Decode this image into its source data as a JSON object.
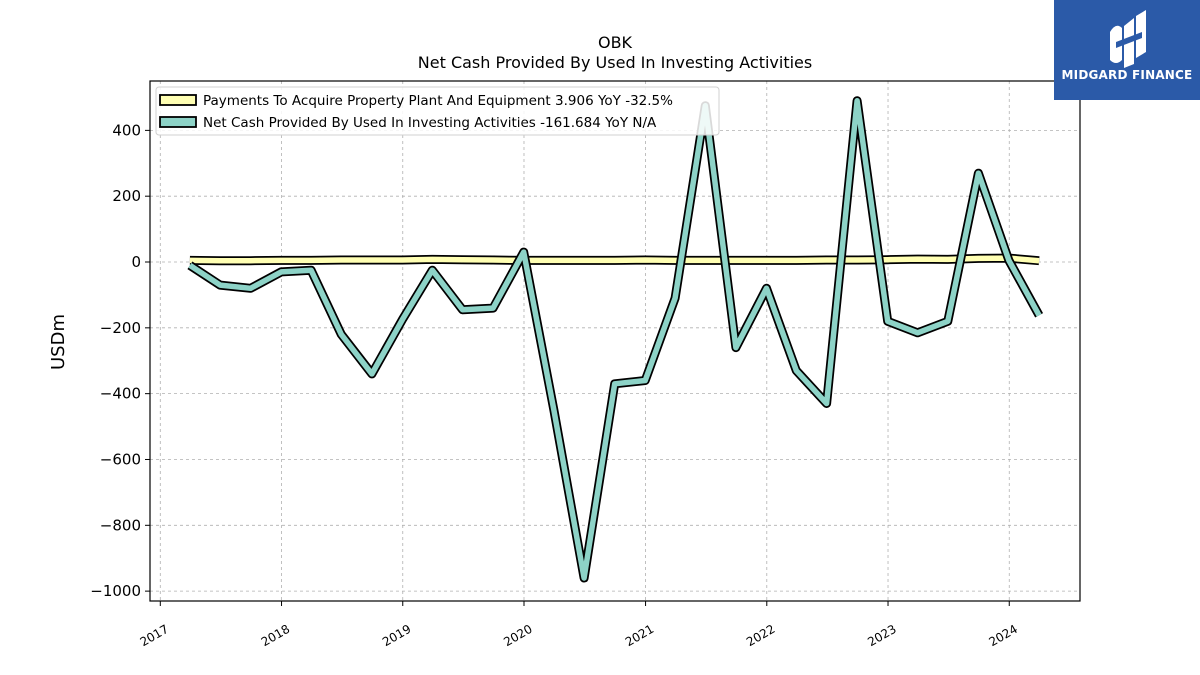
{
  "header": {
    "ticker": "OBK",
    "subtitle": "Net Cash Provided By Used In Investing Activities"
  },
  "logo": {
    "text": "MIDGARD FINANCE",
    "icon": "midgard-logo-icon"
  },
  "chart_data": {
    "type": "line",
    "title": "OBK",
    "subtitle": "Net Cash Provided By Used In Investing Activities",
    "ylabel": "USDm",
    "xlabel": "",
    "ylim": [
      -1030,
      550
    ],
    "xlim": [
      "2016-12-01",
      "2024-08-01"
    ],
    "grid": true,
    "legend_position": "top-left",
    "yticks": [
      400,
      200,
      0,
      -200,
      -400,
      -600,
      -800,
      -1000
    ],
    "ytick_labels": [
      "400",
      "200",
      "0",
      "−200",
      "−400",
      "−600",
      "−800",
      "−1000"
    ],
    "xticks": [
      "2017-01-01",
      "2018-01-01",
      "2019-01-01",
      "2020-01-01",
      "2021-01-01",
      "2022-01-01",
      "2023-01-01",
      "2024-01-01"
    ],
    "xtick_labels": [
      "2017",
      "2018",
      "2019",
      "2020",
      "2021",
      "2022",
      "2023",
      "2024"
    ],
    "series": [
      {
        "name": "Payments To Acquire Property Plant And Equipment",
        "legend_label": "Payments To Acquire Property Plant And Equipment  3.906 YoY -32.5%",
        "color": "#ffffb3",
        "x": [
          "2017-03-31",
          "2017-06-30",
          "2017-09-30",
          "2017-12-31",
          "2018-03-31",
          "2018-06-30",
          "2018-09-30",
          "2018-12-31",
          "2019-03-31",
          "2019-06-30",
          "2019-09-30",
          "2019-12-31",
          "2020-03-31",
          "2020-06-30",
          "2020-09-30",
          "2020-12-31",
          "2021-03-31",
          "2021-06-30",
          "2021-09-30",
          "2021-12-31",
          "2022-03-31",
          "2022-06-30",
          "2022-09-30",
          "2022-12-31",
          "2023-03-31",
          "2023-06-30",
          "2023-09-30",
          "2023-12-31",
          "2024-03-31"
        ],
        "values": [
          5,
          4,
          4,
          5,
          5,
          6,
          6,
          6,
          8,
          7,
          6,
          5,
          5,
          5,
          5,
          6,
          5,
          5,
          5,
          5,
          5,
          6,
          6,
          7,
          9,
          8,
          11,
          12,
          4
        ]
      },
      {
        "name": "Net Cash Provided By Used In Investing Activities",
        "legend_label": "Net Cash Provided By Used In Investing Activities  -161.684 YoY N/A",
        "color": "#8dd3c7",
        "x": [
          "2017-03-31",
          "2017-06-30",
          "2017-09-30",
          "2017-12-31",
          "2018-03-31",
          "2018-06-30",
          "2018-09-30",
          "2018-12-31",
          "2019-03-31",
          "2019-06-30",
          "2019-09-30",
          "2019-12-31",
          "2020-03-31",
          "2020-06-30",
          "2020-09-30",
          "2020-12-31",
          "2021-03-31",
          "2021-06-30",
          "2021-09-30",
          "2021-12-31",
          "2022-03-31",
          "2022-06-30",
          "2022-09-30",
          "2022-12-31",
          "2023-03-31",
          "2023-06-30",
          "2023-09-30",
          "2023-12-31",
          "2024-03-31"
        ],
        "values": [
          -10,
          -70,
          -80,
          -30,
          -25,
          -220,
          -340,
          -175,
          -25,
          -145,
          -140,
          30,
          -450,
          -960,
          -370,
          -360,
          -110,
          475,
          -260,
          -80,
          -330,
          -430,
          490,
          -180,
          -215,
          -180,
          270,
          5,
          -162
        ]
      }
    ]
  }
}
